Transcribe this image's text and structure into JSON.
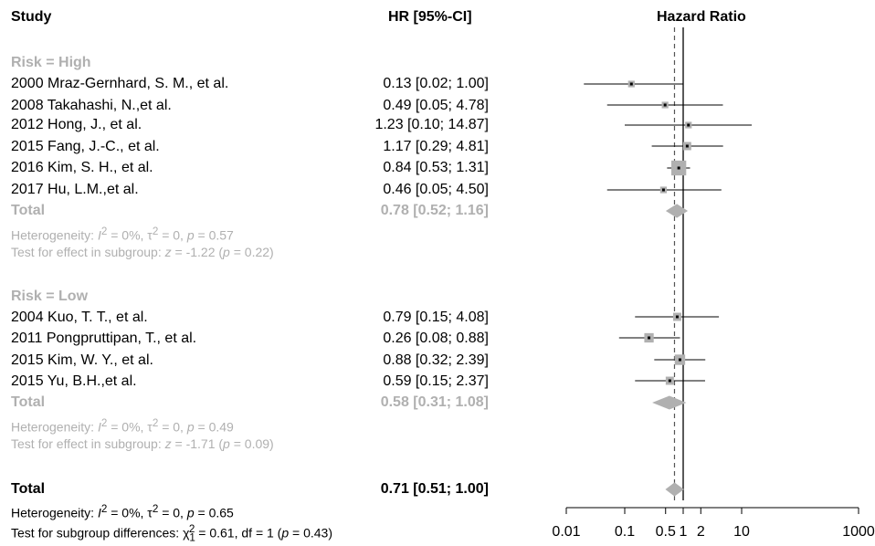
{
  "header": {
    "study": "Study",
    "ci": "HR [95%-CI]",
    "plot_title": "Hazard Ratio"
  },
  "groups": [
    {
      "label": "Risk = High",
      "studies": [
        {
          "name": "2000 Mraz-Gernhard, S. M., et al.",
          "ci_text": "0.13 [0.02;  1.00]"
        },
        {
          "name": "2008 Takahashi, N.,et al.",
          "ci_text": "0.49 [0.05;  4.78]"
        },
        {
          "name": "2012 Hong, J., et al.",
          "ci_text": "1.23 [0.10; 14.87]"
        },
        {
          "name": "2015 Fang, J.-C., et al.",
          "ci_text": "1.17 [0.29;  4.81]"
        },
        {
          "name": "2016 Kim, S. H., et al.",
          "ci_text": "0.84 [0.53;  1.31]"
        },
        {
          "name": "2017 Hu, L.M.,et al.",
          "ci_text": "0.46 [0.05;  4.50]"
        }
      ],
      "total_label": "Total",
      "total_text": "0.78 [0.52;  1.16]",
      "heterogeneity": {
        "prefix": "Heterogeneity: ",
        "i": "I",
        "i_sup": "2",
        "rest": " = 0%, τ",
        "tau_sup": "2",
        "rest2": " = 0, ",
        "p": "p",
        "p_val": " = 0.57"
      },
      "effect": {
        "prefix": "Test for effect in subgroup: ",
        "z": "z",
        "z_val": " = -1.22 (",
        "p": "p",
        "p_val": " = 0.22)"
      }
    },
    {
      "label": "Risk = Low",
      "studies": [
        {
          "name": "2004 Kuo, T. T., et al.",
          "ci_text": "0.79 [0.15;  4.08]"
        },
        {
          "name": "2011 Pongpruttipan, T., et al.",
          "ci_text": "0.26 [0.08;  0.88]"
        },
        {
          "name": "2015 Kim, W. Y., et al.",
          "ci_text": "0.88 [0.32;  2.39]"
        },
        {
          "name": "2015 Yu, B.H.,et al.",
          "ci_text": "0.59 [0.15;  2.37]"
        }
      ],
      "total_label": "Total",
      "total_text": "0.58 [0.31;  1.08]",
      "heterogeneity": {
        "prefix": "Heterogeneity: ",
        "i": "I",
        "i_sup": "2",
        "rest": " = 0%, τ",
        "tau_sup": "2",
        "rest2": " = 0, ",
        "p": "p",
        "p_val": " = 0.49"
      },
      "effect": {
        "prefix": "Test for effect in subgroup: ",
        "z": "z",
        "z_val": " = -1.71 (",
        "p": "p",
        "p_val": " = 0.09)"
      }
    }
  ],
  "overall": {
    "label": "Total",
    "ci_text": "0.71 [0.51;  1.00]",
    "heterogeneity": {
      "prefix": "Heterogeneity: ",
      "i": "I",
      "i_sup": "2",
      "rest": " = 0%, τ",
      "tau_sup": "2",
      "rest2": " = 0, ",
      "p": "p",
      "p_val": " = 0.65"
    },
    "subgroup_test": {
      "prefix": "Test for subgroup differences: χ",
      "sub": "1",
      "sup": "2",
      "rest": " = 0.61, df = 1 (",
      "p": "p",
      "p_val": " = 0.43)"
    }
  },
  "chart_data": {
    "type": "forest",
    "x_scale": "log",
    "x_range": [
      0.01,
      1000
    ],
    "x_ticks": [
      0.01,
      0.1,
      0.5,
      1,
      2,
      10,
      1000
    ],
    "x_tick_labels": [
      "0.01",
      "0.1",
      "0.5",
      "1",
      "2",
      "10",
      "1000"
    ],
    "reference_line": 1,
    "pooled_line": 0.71,
    "studies": [
      {
        "hr": 0.13,
        "lo": 0.02,
        "hi": 1.0,
        "weight": 1
      },
      {
        "hr": 0.49,
        "lo": 0.05,
        "hi": 4.78,
        "weight": 1
      },
      {
        "hr": 1.23,
        "lo": 0.1,
        "hi": 14.87,
        "weight": 1
      },
      {
        "hr": 1.17,
        "lo": 0.29,
        "hi": 4.81,
        "weight": 2
      },
      {
        "hr": 0.84,
        "lo": 0.53,
        "hi": 1.31,
        "weight": 10
      },
      {
        "hr": 0.46,
        "lo": 0.05,
        "hi": 4.5,
        "weight": 1
      },
      {
        "hr": 0.79,
        "lo": 0.15,
        "hi": 4.08,
        "weight": 2
      },
      {
        "hr": 0.26,
        "lo": 0.08,
        "hi": 0.88,
        "weight": 3
      },
      {
        "hr": 0.88,
        "lo": 0.32,
        "hi": 2.39,
        "weight": 4
      },
      {
        "hr": 0.59,
        "lo": 0.15,
        "hi": 2.37,
        "weight": 2
      }
    ],
    "diamonds": [
      {
        "hr": 0.78,
        "lo": 0.52,
        "hi": 1.16
      },
      {
        "hr": 0.58,
        "lo": 0.31,
        "hi": 1.08
      },
      {
        "hr": 0.71,
        "lo": 0.51,
        "hi": 1.0
      }
    ],
    "colors": {
      "subgroup": "#b0b0b0",
      "box": "#b0b0b0",
      "line": "#000000"
    }
  }
}
